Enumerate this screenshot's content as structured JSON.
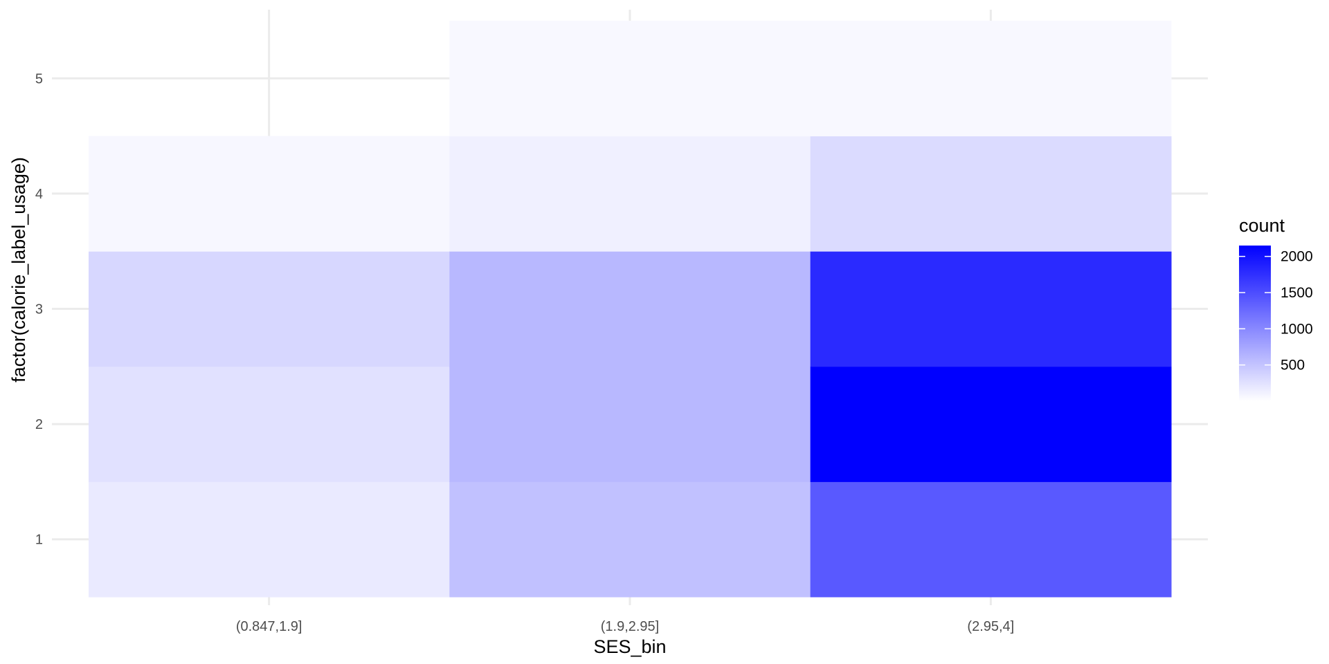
{
  "chart_data": {
    "type": "heatmap",
    "title": "",
    "xlabel": "SES_bin",
    "ylabel": "factor(calorie_label_usage)",
    "x_categories": [
      "(0.847,1.9]",
      "(1.9,2.95]",
      "(2.95,4]"
    ],
    "y_categories": [
      "1",
      "2",
      "3",
      "4",
      "5"
    ],
    "cells": [
      {
        "x": "(0.847,1.9]",
        "y": "1",
        "count": 180
      },
      {
        "x": "(0.847,1.9]",
        "y": "2",
        "count": 250
      },
      {
        "x": "(0.847,1.9]",
        "y": "3",
        "count": 340
      },
      {
        "x": "(0.847,1.9]",
        "y": "4",
        "count": 70
      },
      {
        "x": "(1.9,2.95]",
        "y": "1",
        "count": 520
      },
      {
        "x": "(1.9,2.95]",
        "y": "2",
        "count": 600
      },
      {
        "x": "(1.9,2.95]",
        "y": "3",
        "count": 600
      },
      {
        "x": "(1.9,2.95]",
        "y": "4",
        "count": 130
      },
      {
        "x": "(1.9,2.95]",
        "y": "5",
        "count": 60
      },
      {
        "x": "(2.95,4]",
        "y": "1",
        "count": 1400
      },
      {
        "x": "(2.95,4]",
        "y": "2",
        "count": 2150
      },
      {
        "x": "(2.95,4]",
        "y": "3",
        "count": 1800
      },
      {
        "x": "(2.95,4]",
        "y": "4",
        "count": 300
      },
      {
        "x": "(2.95,4]",
        "y": "5",
        "count": 60
      }
    ],
    "legend": {
      "title": "count",
      "breaks": [
        500,
        1000,
        1500,
        2000
      ],
      "break_labels": [
        "500",
        "1000",
        "1500",
        "2000"
      ],
      "range": [
        0,
        2150
      ],
      "placement": "right"
    },
    "colors": {
      "low": "#ffffff",
      "high": "#0000ff"
    },
    "grid": true
  }
}
